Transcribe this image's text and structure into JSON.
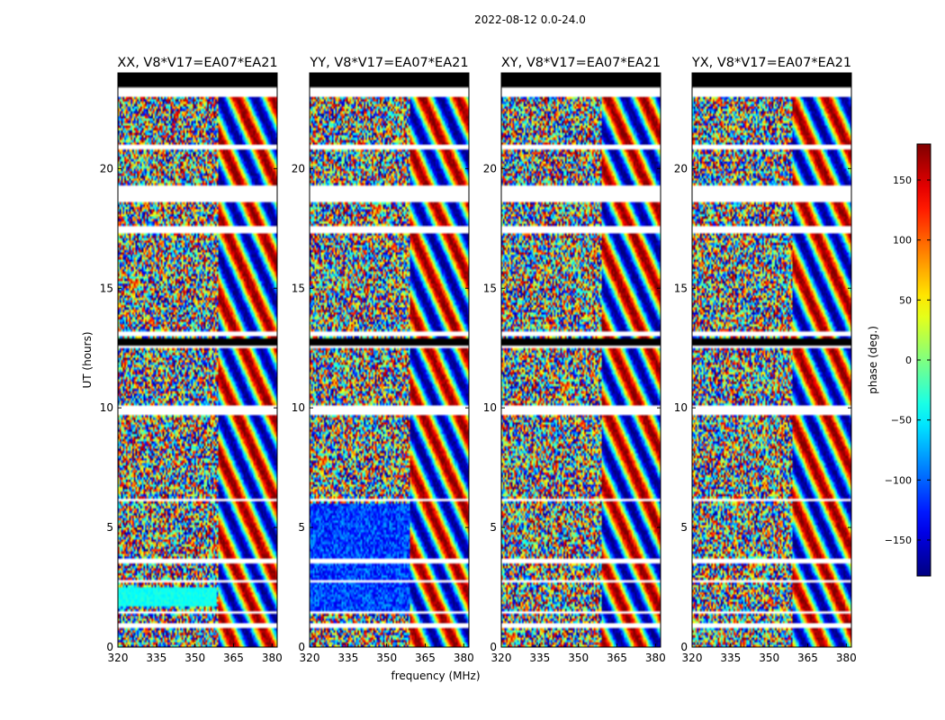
{
  "chart_data": {
    "type": "heatmap",
    "suptitle": "2022-08-12 0.0-24.0",
    "xlabel": "frequency (MHz)",
    "ylabel": "UT (hours)",
    "xlim": [
      320,
      382
    ],
    "ylim": [
      0,
      24
    ],
    "xticks": [
      320,
      335,
      350,
      365,
      380
    ],
    "xtick_labels": [
      "320",
      "335",
      "350",
      "365",
      "380"
    ],
    "yticks": [
      0,
      5,
      10,
      15,
      20
    ],
    "ytick_labels": [
      "0",
      "5",
      "10",
      "15",
      "20"
    ],
    "colorbar": {
      "label": "phase (deg.)",
      "range": [
        -180,
        180
      ],
      "colormap": "jet",
      "ticks": [
        150,
        100,
        50,
        0,
        -50,
        -100,
        -150
      ],
      "tick_labels": [
        "150",
        "100",
        "50",
        "0",
        "−50",
        "−100",
        "−150"
      ]
    },
    "panels": [
      {
        "title": "XX, V8*V17=EA07*EA21",
        "polarization": "XX"
      },
      {
        "title": "YY, V8*V17=EA07*EA21",
        "polarization": "YY"
      },
      {
        "title": "XY, V8*V17=EA07*EA21",
        "polarization": "XY"
      },
      {
        "title": "YX, V8*V17=EA07*EA21",
        "polarization": "YX"
      }
    ],
    "flagged_ut_ranges": [
      [
        0.85,
        1.0
      ],
      [
        1.4,
        1.55
      ],
      [
        2.75,
        2.85
      ],
      [
        3.55,
        3.65
      ],
      [
        6.1,
        6.2
      ],
      [
        9.75,
        10.05
      ],
      [
        12.5,
        12.9
      ],
      [
        13.05,
        13.15
      ],
      [
        17.35,
        17.6
      ],
      [
        18.65,
        19.3
      ],
      [
        20.85,
        20.95
      ],
      [
        23.0,
        23.35
      ],
      [
        23.35,
        24.0
      ]
    ]
  }
}
